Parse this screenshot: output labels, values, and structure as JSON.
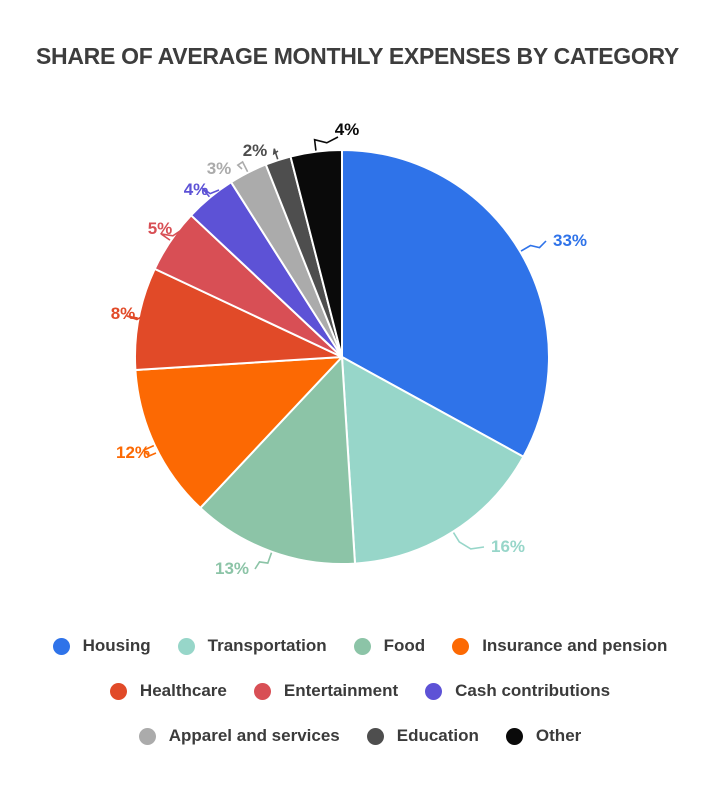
{
  "header": {
    "title": "SHARE OF AVERAGE MONTHLY EXPENSES BY CATEGORY"
  },
  "chart_data": {
    "type": "pie",
    "title": "SHARE OF AVERAGE MONTHLY EXPENSES BY CATEGORY",
    "categories": [
      "Housing",
      "Transportation",
      "Food",
      "Insurance and pension",
      "Healthcare",
      "Entertainment",
      "Cash contributions",
      "Apparel and services",
      "Education",
      "Other"
    ],
    "values": [
      33,
      16,
      13,
      12,
      8,
      5,
      4,
      3,
      2,
      4
    ],
    "value_labels": [
      "33%",
      "16%",
      "13%",
      "12%",
      "8%",
      "5%",
      "4%",
      "3%",
      "2%",
      "4%"
    ],
    "unit": "%",
    "total": 100,
    "colors": [
      "#2F73E9",
      "#97D6C9",
      "#8CC4A7",
      "#FC6903",
      "#E14A28",
      "#D84F55",
      "#5D52D6",
      "#ABABAB",
      "#4E4E4E",
      "#0A0A0A"
    ],
    "direction": "clockwise",
    "start_angle_deg": 0,
    "legend_position": "bottom",
    "grid": false
  },
  "theme": {
    "background": "#ffffff",
    "title_color": "#3d3d3d",
    "legend_text_color": "#3b3b3b"
  }
}
